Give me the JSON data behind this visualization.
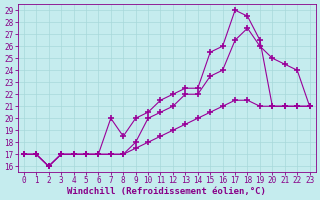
{
  "xlabel": "Windchill (Refroidissement éolien,°C)",
  "bg_color": "#c5ecee",
  "line_color": "#990099",
  "xlim": [
    -0.5,
    23.5
  ],
  "ylim": [
    15.5,
    29.5
  ],
  "xticks": [
    0,
    1,
    2,
    3,
    4,
    5,
    6,
    7,
    8,
    9,
    10,
    11,
    12,
    13,
    14,
    15,
    16,
    17,
    18,
    19,
    20,
    21,
    22,
    23
  ],
  "yticks": [
    16,
    17,
    18,
    19,
    20,
    21,
    22,
    23,
    24,
    25,
    26,
    27,
    28,
    29
  ],
  "curve1_x": [
    0,
    1,
    2,
    3,
    4,
    5,
    6,
    7,
    8,
    9,
    10,
    11,
    12,
    13,
    14,
    15,
    16,
    17,
    18,
    19,
    20,
    21,
    22,
    23
  ],
  "curve1_y": [
    17,
    17,
    16,
    17,
    17,
    17,
    17,
    20,
    18.5,
    20,
    20.5,
    21.5,
    22,
    22.5,
    22.5,
    25.5,
    26,
    29,
    28.5,
    26.5,
    21,
    21,
    21,
    21
  ],
  "curve2_x": [
    0,
    1,
    2,
    3,
    4,
    5,
    6,
    7,
    8,
    9,
    10,
    11,
    12,
    13,
    14,
    15,
    16,
    17,
    18,
    19,
    20,
    21,
    22,
    23
  ],
  "curve2_y": [
    17,
    17,
    16,
    17,
    17,
    17,
    17,
    17,
    17,
    18,
    20,
    20.5,
    21,
    22,
    22,
    23.5,
    24,
    26.5,
    27.5,
    26,
    25,
    24.5,
    24,
    21
  ],
  "curve3_x": [
    0,
    1,
    2,
    3,
    4,
    5,
    6,
    7,
    8,
    9,
    10,
    11,
    12,
    13,
    14,
    15,
    16,
    17,
    18,
    19,
    20,
    21,
    22,
    23
  ],
  "curve3_y": [
    17,
    17,
    16,
    17,
    17,
    17,
    17,
    17,
    17,
    17.5,
    18,
    18.5,
    19,
    19.5,
    20,
    20.5,
    21,
    21.5,
    21.5,
    21,
    21,
    21,
    21,
    21
  ],
  "grid_color": "#a8d8da",
  "font_color": "#880088",
  "tick_fontsize": 5.5,
  "xlabel_fontsize": 6.5
}
